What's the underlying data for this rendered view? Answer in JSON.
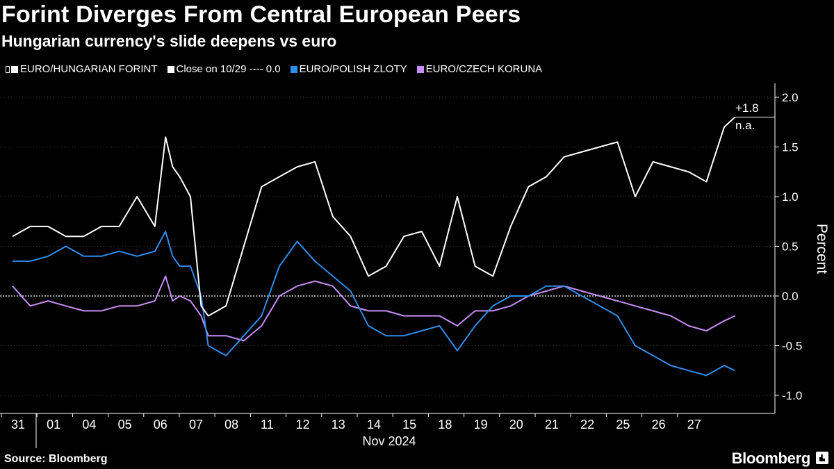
{
  "title": "Forint Diverges From Central European Peers",
  "subtitle": "Hungarian currency's slide deepens vs euro",
  "legend": {
    "huf": "EURO/HUNGARIAN FORINT",
    "close": "Close on 10/29 ---- 0.0",
    "pln": "EURO/POLISH ZLOTY",
    "czk": "EURO/CZECH KORUNA"
  },
  "source": "Source: Bloomberg",
  "brand": "Bloomberg",
  "colors": {
    "background": "#000000",
    "huf": "#ffffff",
    "pln": "#2f8eea",
    "czk": "#c98ef5",
    "grid": "#444444"
  },
  "chart_data": {
    "type": "line",
    "ylabel": "Percent",
    "ylim": [
      -1.2,
      2.2
    ],
    "y_ticks": [
      -1.0,
      -0.5,
      0.0,
      0.5,
      1.0,
      1.5,
      2.0
    ],
    "y_tick_labels": [
      "-1.0",
      "-0.5",
      "0.0",
      "0.5",
      "1.0",
      "1.5",
      "2.0"
    ],
    "x_tick_labels": [
      "31",
      "01",
      "04",
      "05",
      "06",
      "07",
      "08",
      "11",
      "12",
      "13",
      "14",
      "15",
      "18",
      "19",
      "20",
      "21",
      "22",
      "25",
      "26",
      "27"
    ],
    "x_month_label": "Nov 2024",
    "reference_line": 0.0,
    "annotations": [
      {
        "series": "EURO/HUNGARIAN FORINT",
        "text": "+1.8"
      },
      {
        "series": "Close on 10/29",
        "text": "n.a."
      }
    ],
    "x": [
      0,
      0.5,
      1,
      1.5,
      2,
      2.5,
      3,
      3.5,
      4,
      4.3,
      4.5,
      4.7,
      5,
      5.3,
      5.5,
      6,
      6.5,
      7,
      7.5,
      8,
      8.5,
      9,
      9.5,
      10,
      10.5,
      11,
      11.5,
      12,
      12.5,
      13,
      13.5,
      14,
      14.5,
      15,
      15.5,
      16,
      16.5,
      17,
      17.5,
      18,
      18.5,
      19,
      19.5,
      20,
      20.3
    ],
    "series": [
      {
        "name": "EURO/HUNGARIAN FORINT",
        "values": [
          0.6,
          0.7,
          0.7,
          0.6,
          0.6,
          0.7,
          0.7,
          1.0,
          0.7,
          1.6,
          1.3,
          1.2,
          1.0,
          -0.1,
          -0.2,
          -0.1,
          0.5,
          1.1,
          1.2,
          1.3,
          1.35,
          0.8,
          0.6,
          0.2,
          0.3,
          0.6,
          0.65,
          0.3,
          1.0,
          0.3,
          0.2,
          0.7,
          1.1,
          1.2,
          1.4,
          1.45,
          1.5,
          1.55,
          1.0,
          1.35,
          1.3,
          1.25,
          1.15,
          1.7,
          1.8
        ]
      },
      {
        "name": "EURO/POLISH ZLOTY",
        "values": [
          0.35,
          0.35,
          0.4,
          0.5,
          0.4,
          0.4,
          0.45,
          0.4,
          0.45,
          0.65,
          0.4,
          0.3,
          0.3,
          0.0,
          -0.5,
          -0.6,
          -0.4,
          -0.2,
          0.3,
          0.55,
          0.35,
          0.2,
          0.05,
          -0.3,
          -0.4,
          -0.4,
          -0.35,
          -0.3,
          -0.55,
          -0.3,
          -0.1,
          0.0,
          0.0,
          0.1,
          0.1,
          0.0,
          -0.1,
          -0.2,
          -0.5,
          -0.6,
          -0.7,
          -0.75,
          -0.8,
          -0.7,
          -0.75
        ]
      },
      {
        "name": "EURO/CZECH KORUNA",
        "values": [
          0.1,
          -0.1,
          -0.05,
          -0.1,
          -0.15,
          -0.15,
          -0.1,
          -0.1,
          -0.05,
          0.2,
          -0.05,
          0.0,
          -0.05,
          -0.2,
          -0.4,
          -0.4,
          -0.45,
          -0.3,
          0.0,
          0.1,
          0.15,
          0.1,
          -0.1,
          -0.15,
          -0.15,
          -0.2,
          -0.2,
          -0.2,
          -0.3,
          -0.15,
          -0.15,
          -0.1,
          0.0,
          0.05,
          0.1,
          0.05,
          0.0,
          -0.05,
          -0.1,
          -0.15,
          -0.2,
          -0.3,
          -0.35,
          -0.25,
          -0.2
        ]
      }
    ]
  }
}
